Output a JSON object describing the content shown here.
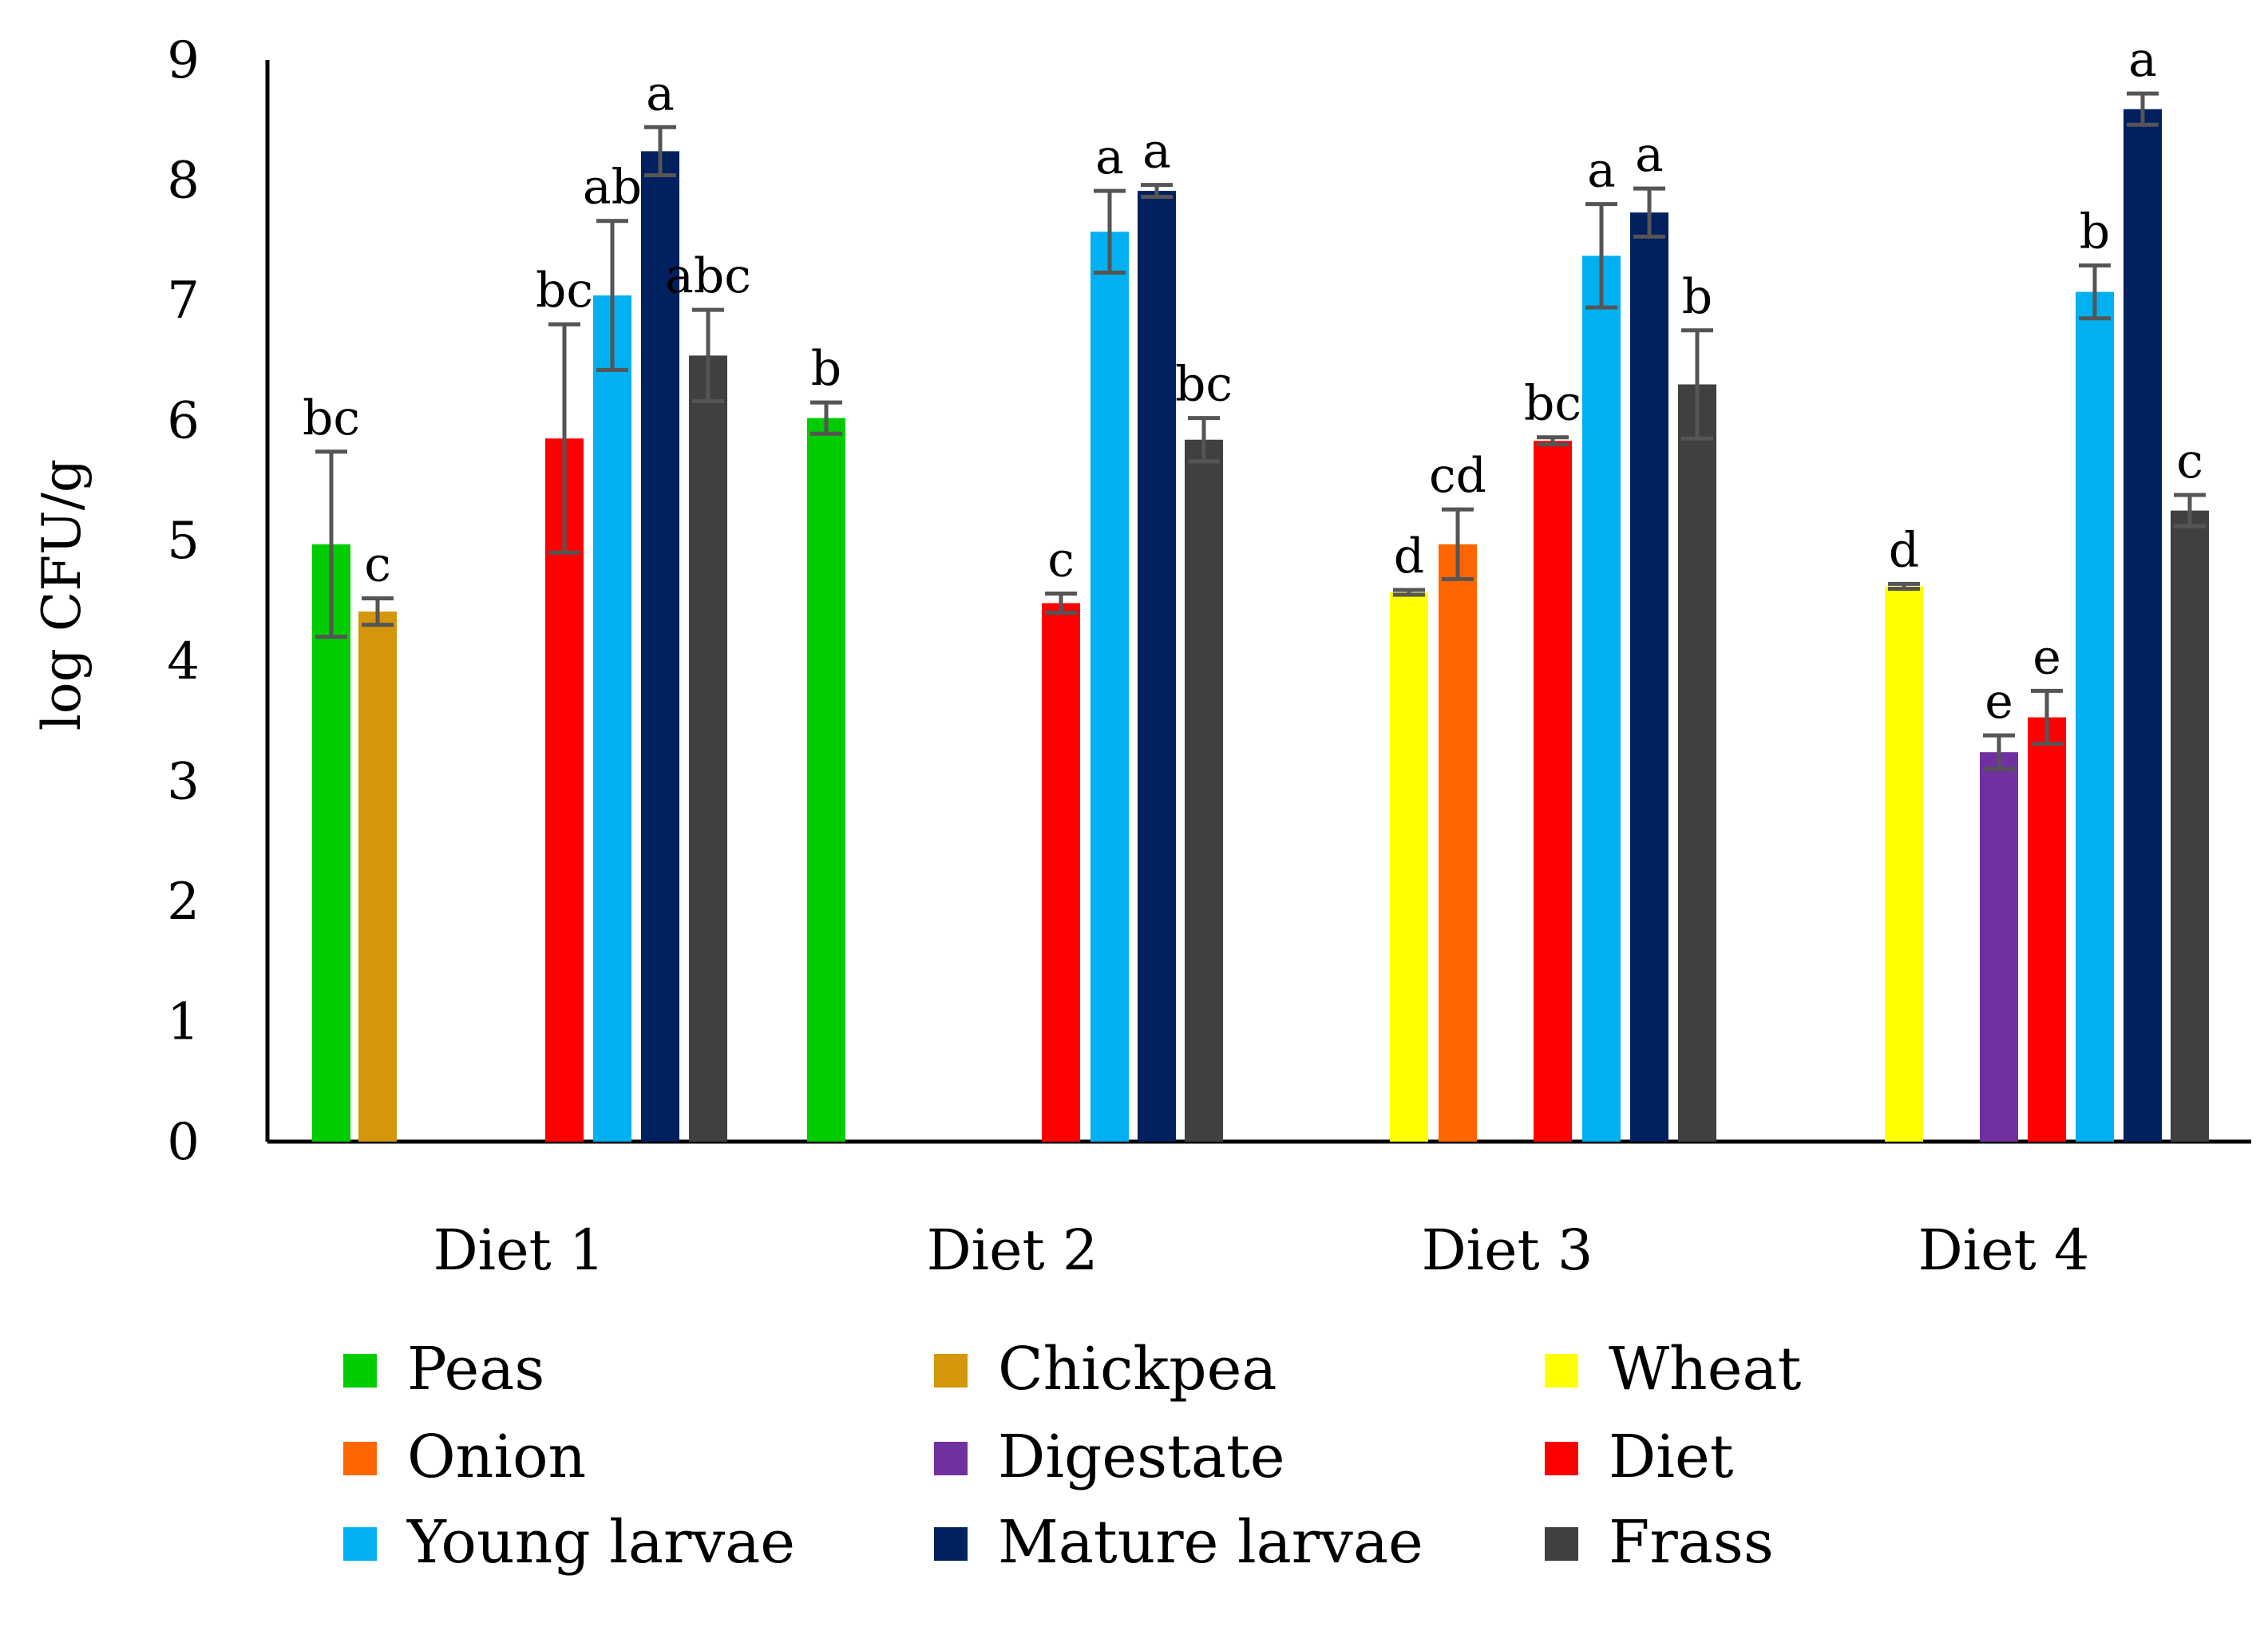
{
  "chart_data": {
    "type": "bar",
    "title": "",
    "xlabel": "",
    "ylabel": "log CFU/g",
    "ylim": [
      0,
      9
    ],
    "yticks": [
      "0",
      "1",
      "2",
      "3",
      "4",
      "5",
      "6",
      "7",
      "8",
      "9"
    ],
    "grid": false,
    "legend_position": "bottom",
    "categories": [
      "Diet 1",
      "Diet 2",
      "Diet 3",
      "Diet 4"
    ],
    "series": [
      {
        "name": "Peas",
        "color": "#00cc00",
        "values": [
          4.97,
          6.02,
          null,
          null
        ],
        "errors": [
          0.77,
          0.13,
          null,
          null
        ],
        "labels": [
          "bc",
          "b",
          null,
          null
        ]
      },
      {
        "name": "Chickpea",
        "color": "#d4960a",
        "values": [
          4.41,
          null,
          null,
          null
        ],
        "errors": [
          0.11,
          null,
          null,
          null
        ],
        "labels": [
          "c",
          null,
          null,
          null
        ]
      },
      {
        "name": "Wheat",
        "color": "#ffff00",
        "values": [
          null,
          null,
          4.57,
          4.62
        ],
        "errors": [
          null,
          null,
          0.02,
          0.02
        ],
        "labels": [
          null,
          null,
          "d",
          "d"
        ]
      },
      {
        "name": "Onion",
        "color": "#ff6600",
        "values": [
          null,
          null,
          4.97,
          null
        ],
        "errors": [
          null,
          null,
          0.29,
          null
        ],
        "labels": [
          null,
          null,
          "cd",
          null
        ]
      },
      {
        "name": "Digestate",
        "color": "#7030a0",
        "values": [
          null,
          null,
          null,
          3.24
        ],
        "errors": [
          null,
          null,
          null,
          0.14
        ],
        "labels": [
          null,
          null,
          null,
          "e"
        ]
      },
      {
        "name": "Diet",
        "color": "#ff0000",
        "values": [
          5.85,
          4.48,
          5.83,
          3.53
        ],
        "errors": [
          0.95,
          0.08,
          0.03,
          0.22
        ],
        "labels": [
          "bc",
          "c",
          "bc",
          "e"
        ]
      },
      {
        "name": "Young larvae",
        "color": "#00b0f0",
        "values": [
          7.04,
          7.57,
          7.37,
          7.07
        ],
        "errors": [
          0.62,
          0.34,
          0.43,
          0.22
        ],
        "labels": [
          "ab",
          "a",
          "a",
          "b"
        ]
      },
      {
        "name": "Mature larvae",
        "color": "#002060",
        "values": [
          8.24,
          7.91,
          7.73,
          8.59
        ],
        "errors": [
          0.2,
          0.05,
          0.2,
          0.13
        ],
        "labels": [
          "a",
          "a",
          "a",
          "a"
        ]
      },
      {
        "name": "Frass",
        "color": "#404040",
        "values": [
          6.54,
          5.84,
          6.3,
          5.25
        ],
        "errors": [
          0.38,
          0.18,
          0.45,
          0.13
        ],
        "labels": [
          "abc",
          "bc",
          "b",
          "c"
        ]
      }
    ]
  }
}
